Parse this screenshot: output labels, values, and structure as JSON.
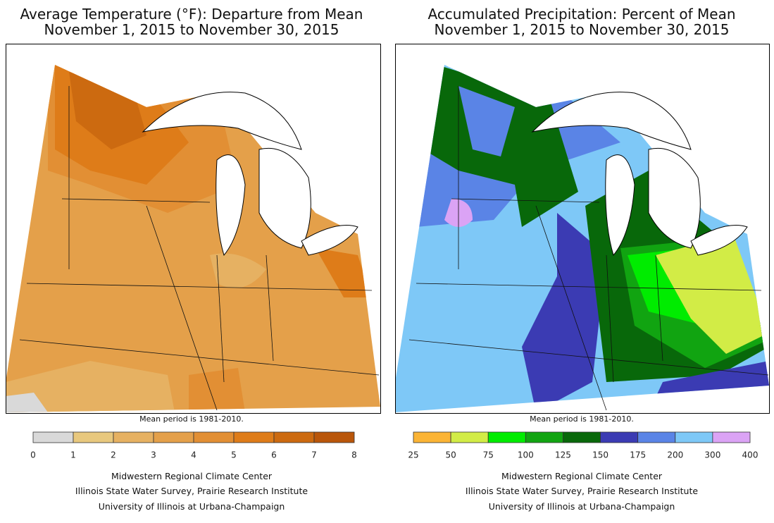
{
  "panels": [
    {
      "title": "Average Temperature (°F): Departure from Mean",
      "subtitle": "November 1, 2015 to November 30, 2015",
      "note": "Mean period is 1981-2010.",
      "legend": {
        "ticks": [
          0,
          1,
          2,
          3,
          4,
          5,
          6,
          7,
          8
        ],
        "colors": [
          "#d9d9d9",
          "#e8c87e",
          "#e6b162",
          "#e4a04a",
          "#e28f34",
          "#de7c19",
          "#cc6a10",
          "#b9560a"
        ]
      },
      "credits": [
        "Midwestern Regional Climate Center",
        "Illinois State Water Survey, Prairie Research Institute",
        "University of Illinois at Urbana-Champaign"
      ]
    },
    {
      "title": "Accumulated Precipitation: Percent of Mean",
      "subtitle": "November 1, 2015 to November 30, 2015",
      "note": "Mean period is 1981-2010.",
      "legend": {
        "ticks": [
          25,
          50,
          75,
          100,
          125,
          150,
          175,
          200,
          300,
          400
        ],
        "colors": [
          "#fbb435",
          "#d2ec46",
          "#00ec00",
          "#11a411",
          "#08680a",
          "#3b3bb3",
          "#5a84e6",
          "#7ec8f7",
          "#dba3f5"
        ]
      },
      "credits": [
        "Midwestern Regional Climate Center",
        "Illinois State Water Survey, Prairie Research Institute",
        "University of Illinois at Urbana-Champaign"
      ]
    }
  ]
}
